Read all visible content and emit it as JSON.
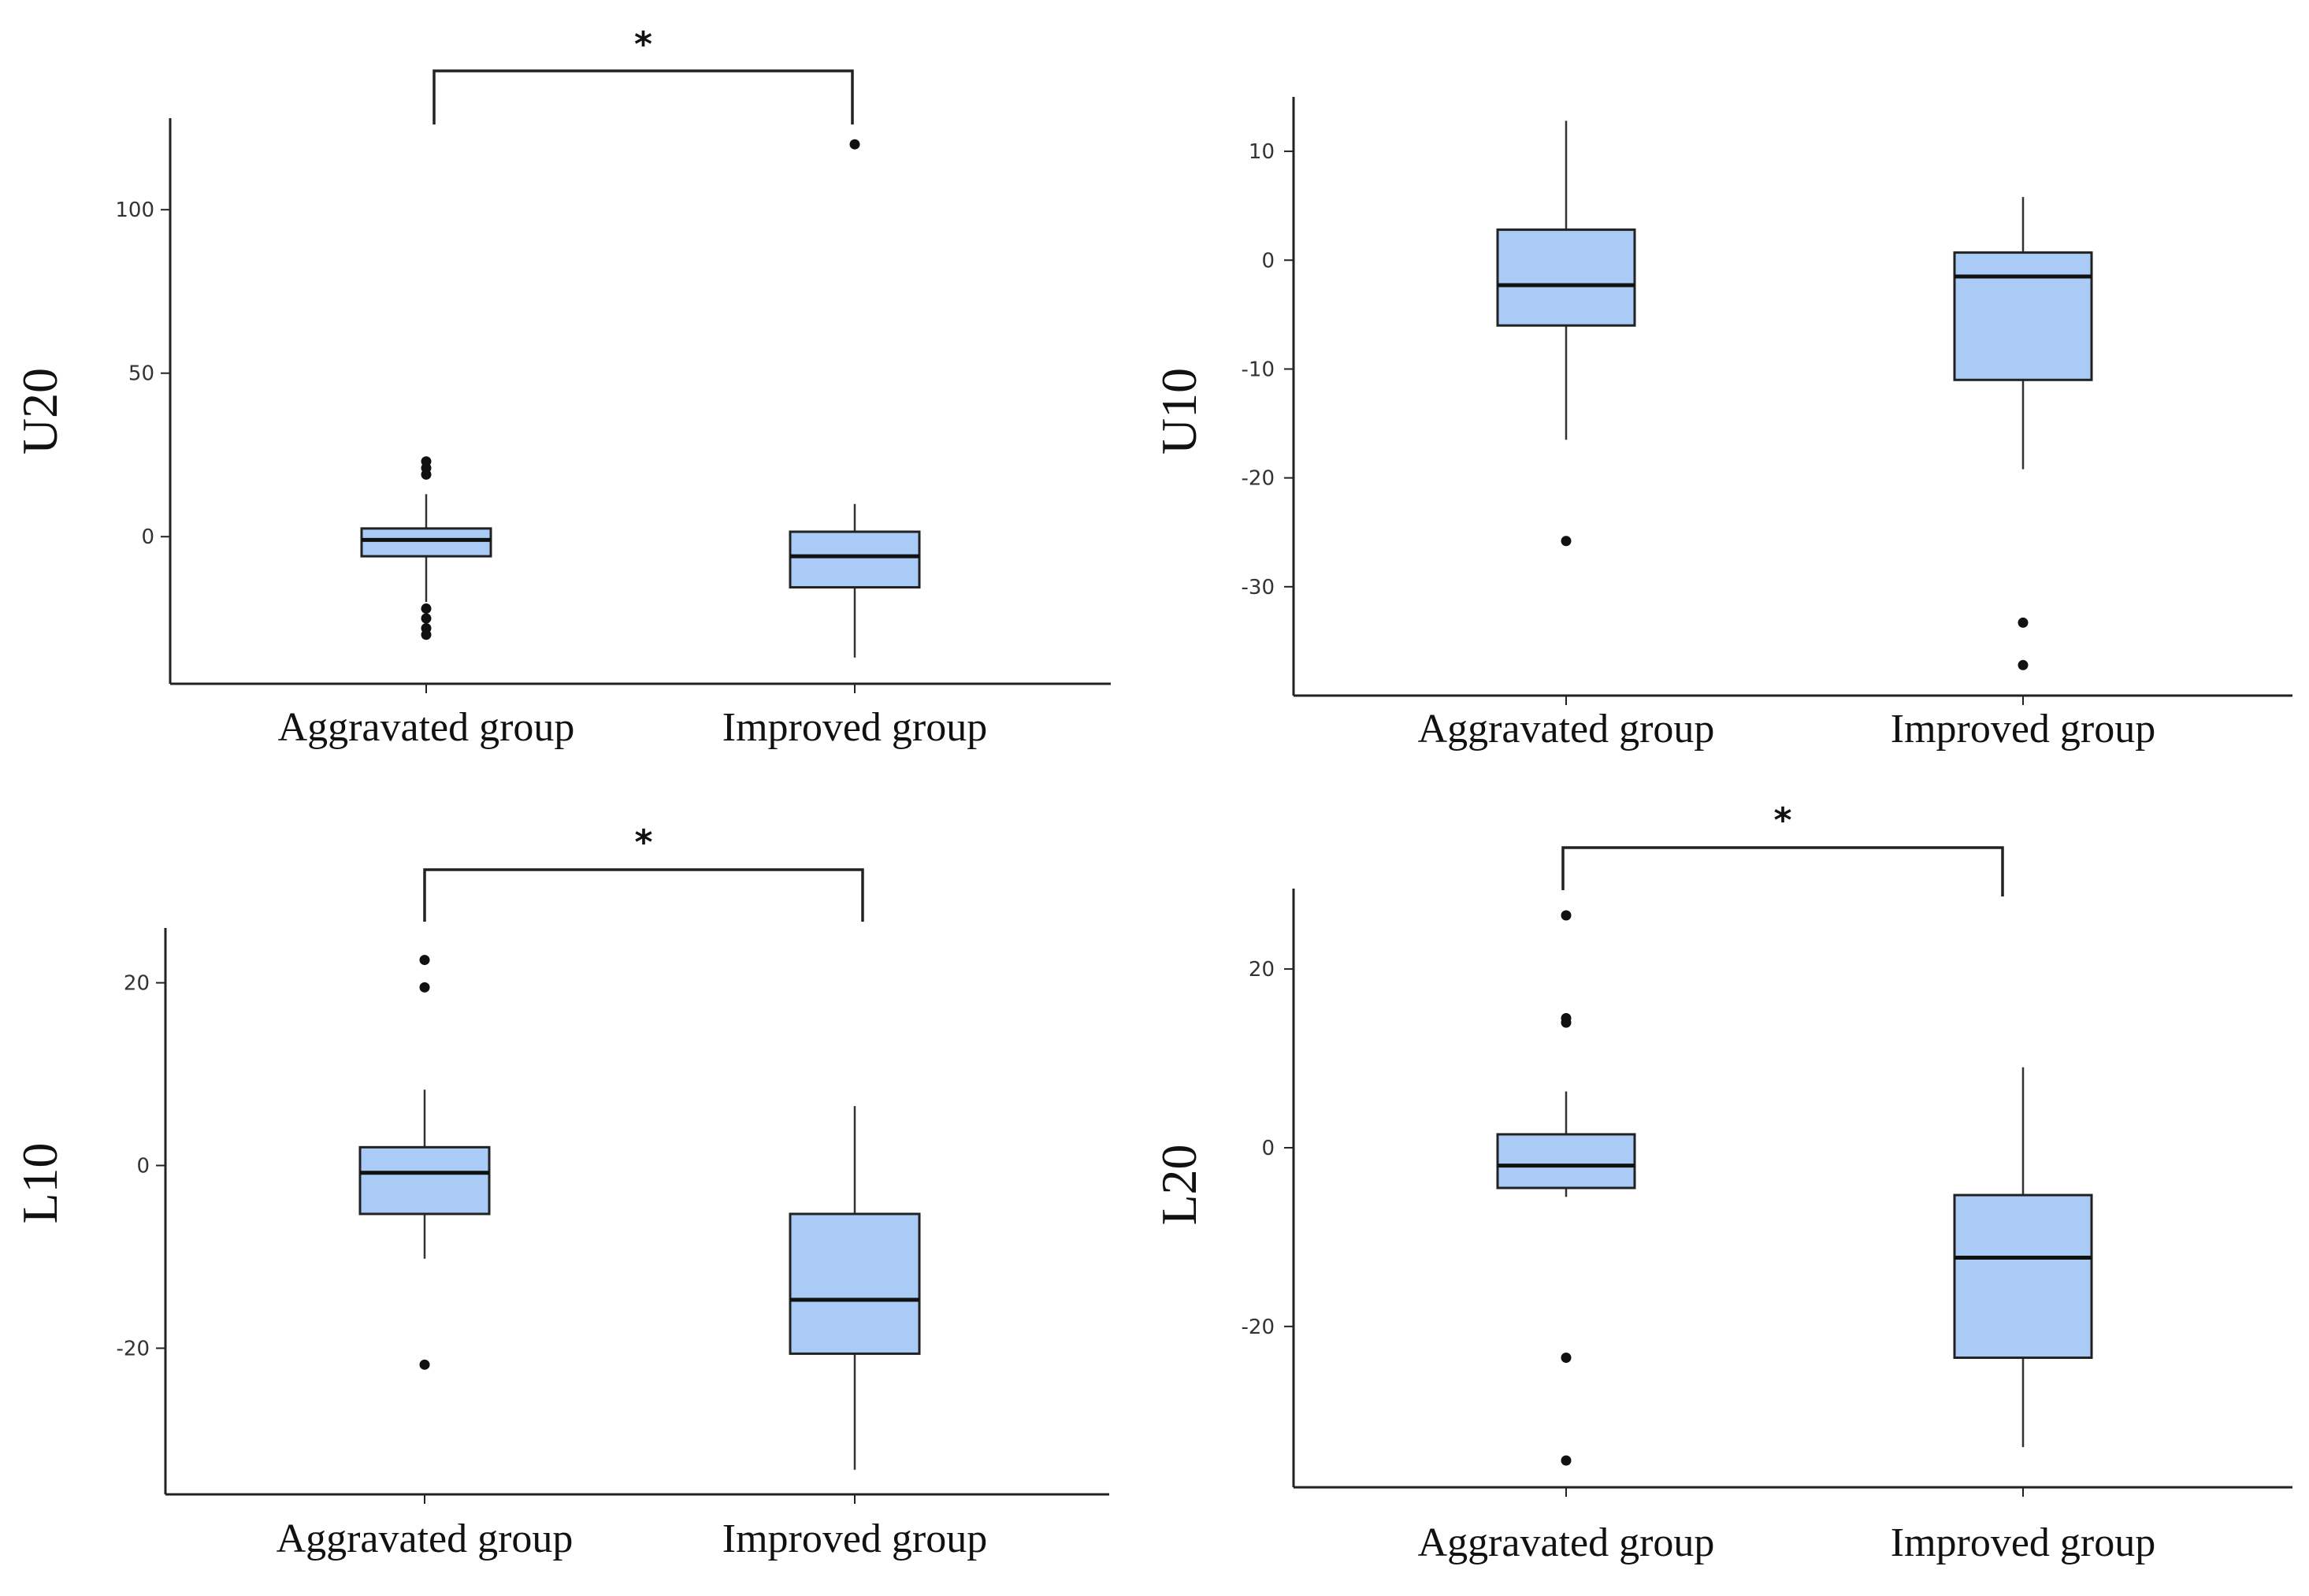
{
  "chart_data": [
    {
      "type": "box",
      "ylabel": "U20",
      "categories": [
        "Aggravated group",
        "Improved group"
      ],
      "ylim": [
        -45,
        128
      ],
      "yticks": [
        0,
        50,
        100
      ],
      "ytick_labels": [
        "0",
        "50",
        "100"
      ],
      "boxes": [
        {
          "category": "Aggravated group",
          "whisker_low": -20,
          "q1": -6,
          "median": -1,
          "q3": 2.5,
          "whisker_high": 13,
          "outliers": [
            23,
            21,
            19,
            -22,
            -25,
            -28,
            -30
          ]
        },
        {
          "category": "Improved group",
          "whisker_low": -37,
          "q1": -15.5,
          "median": -6,
          "q3": 1.5,
          "whisker_high": 10,
          "outliers": [
            120
          ]
        }
      ],
      "significance": {
        "pair": [
          "Aggravated group",
          "Improved group"
        ],
        "label": "*"
      },
      "box_color": "#a9cbf5"
    },
    {
      "type": "box",
      "ylabel": "U10",
      "categories": [
        "Aggravated group",
        "Improved group"
      ],
      "ylim": [
        -40,
        15
      ],
      "yticks": [
        -30,
        -20,
        -10,
        0,
        10
      ],
      "ytick_labels": [
        "-30",
        "-20",
        "-10",
        "0",
        "10"
      ],
      "boxes": [
        {
          "category": "Aggravated group",
          "whisker_low": -16.5,
          "q1": -6,
          "median": -2.3,
          "q3": 2.8,
          "whisker_high": 12.8,
          "outliers": [
            -25.8
          ]
        },
        {
          "category": "Improved group",
          "whisker_low": -19.2,
          "q1": -11,
          "median": -1.5,
          "q3": 0.7,
          "whisker_high": 5.8,
          "outliers": [
            -33.3,
            -37.2
          ]
        }
      ],
      "box_color": "#a9cbf5"
    },
    {
      "type": "box",
      "ylabel": "L10",
      "categories": [
        "Aggravated group",
        "Improved group"
      ],
      "ylim": [
        -36,
        26
      ],
      "yticks": [
        -20,
        0,
        20
      ],
      "ytick_labels": [
        "-20",
        "0",
        "20"
      ],
      "boxes": [
        {
          "category": "Aggravated group",
          "whisker_low": -10.2,
          "q1": -5.3,
          "median": -0.8,
          "q3": 2,
          "whisker_high": 8.3,
          "outliers": [
            22.5,
            19.5,
            -21.8
          ]
        },
        {
          "category": "Improved group",
          "whisker_low": -33.3,
          "q1": -20.6,
          "median": -14.7,
          "q3": -5.3,
          "whisker_high": 6.5,
          "outliers": []
        }
      ],
      "significance": {
        "pair": [
          "Aggravated group",
          "Improved group"
        ],
        "label": "*"
      },
      "box_color": "#a9cbf5"
    },
    {
      "type": "box",
      "ylabel": "L20",
      "categories": [
        "Aggravated group",
        "Improved group"
      ],
      "ylim": [
        -38,
        29
      ],
      "yticks": [
        -20,
        0,
        20
      ],
      "ytick_labels": [
        "-20",
        "0",
        "20"
      ],
      "boxes": [
        {
          "category": "Aggravated group",
          "whisker_low": -5.5,
          "q1": -4.5,
          "median": -2,
          "q3": 1.5,
          "whisker_high": 6.3,
          "outliers": [
            26,
            14.5,
            14,
            -23.5,
            -35
          ]
        },
        {
          "category": "Improved group",
          "whisker_low": -33.5,
          "q1": -23.5,
          "median": -12.3,
          "q3": -5.3,
          "whisker_high": 9,
          "outliers": []
        }
      ],
      "significance": {
        "pair": [
          "Aggravated group",
          "Improved group"
        ],
        "label": "*"
      },
      "box_color": "#a9cbf5"
    }
  ]
}
